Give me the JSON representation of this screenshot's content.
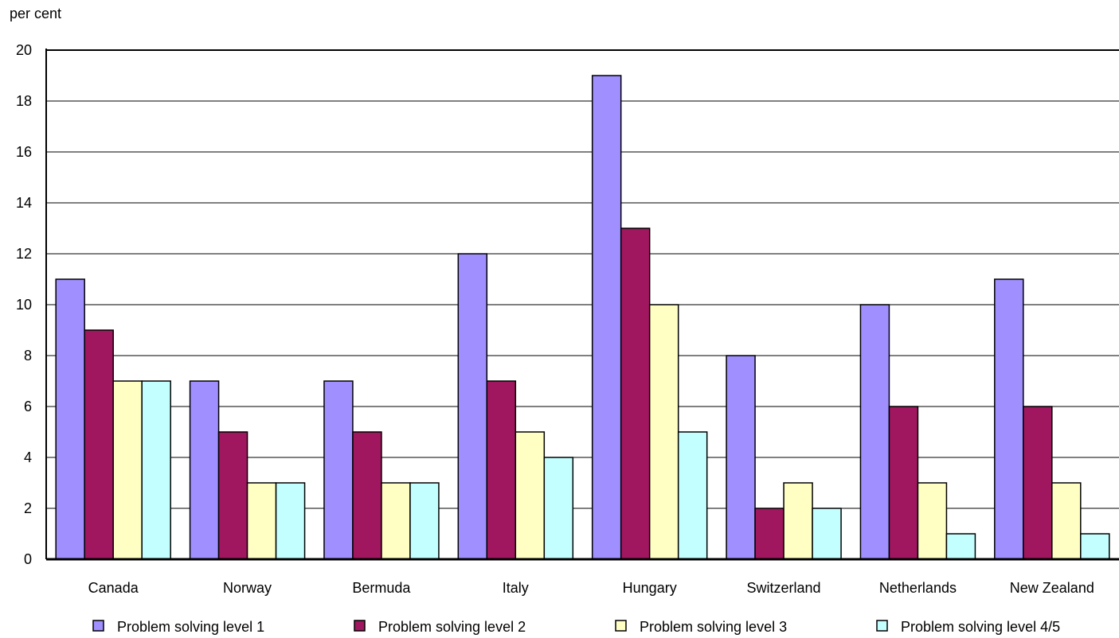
{
  "chart_data": {
    "type": "bar",
    "ylabel": "per cent",
    "ylim": [
      0,
      20
    ],
    "yticks": [
      0,
      2,
      4,
      6,
      8,
      10,
      12,
      14,
      16,
      18,
      20
    ],
    "grid": true,
    "legend_position": "bottom",
    "categories": [
      "Canada",
      "Norway",
      "Bermuda",
      "Italy",
      "Hungary",
      "Switzerland",
      "Netherlands",
      "New Zealand"
    ],
    "series": [
      {
        "name": "Problem solving level 1",
        "color": "#9f8fff",
        "values": [
          11,
          7,
          7,
          12,
          19,
          8,
          10,
          11
        ]
      },
      {
        "name": "Problem solving level 2",
        "color": "#a0175f",
        "values": [
          9,
          5,
          5,
          7,
          13,
          2,
          6,
          6
        ]
      },
      {
        "name": "Problem solving level 3",
        "color": "#ffffc4",
        "values": [
          7,
          3,
          3,
          5,
          10,
          3,
          3,
          3
        ]
      },
      {
        "name": "Problem solving level 4/5",
        "color": "#c4ffff",
        "values": [
          7,
          3,
          3,
          4,
          5,
          2,
          1,
          1
        ]
      }
    ]
  }
}
